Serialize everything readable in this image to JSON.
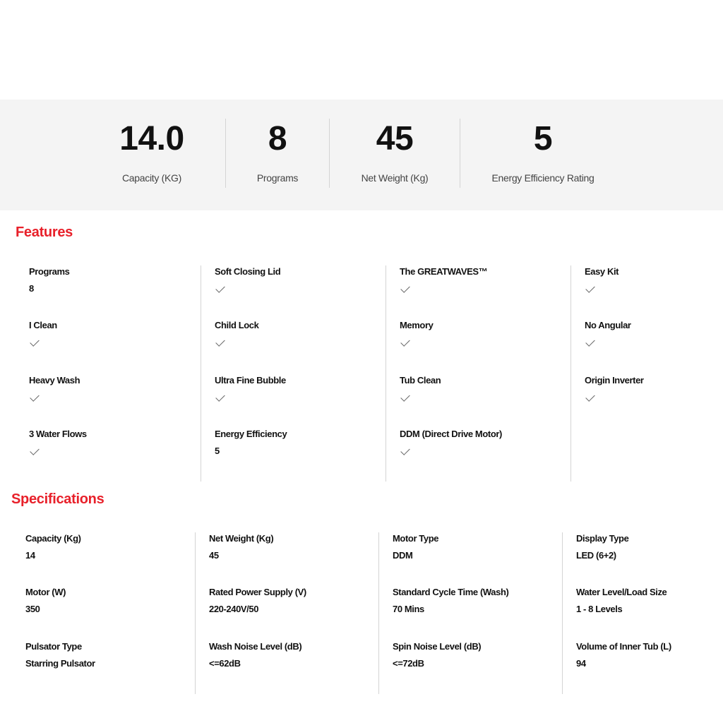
{
  "stats": [
    {
      "value": "14.0",
      "label": "Capacity (KG)"
    },
    {
      "value": "8",
      "label": "Programs"
    },
    {
      "value": "45",
      "label": "Net Weight (Kg)"
    },
    {
      "value": "5",
      "label": "Energy Efficiency Rating"
    }
  ],
  "features": {
    "title": "Features",
    "columns": [
      [
        {
          "label": "Programs",
          "value": "8"
        },
        {
          "label": "I Clean",
          "check": true
        },
        {
          "label": "Heavy Wash",
          "check": true
        },
        {
          "label": "3 Water Flows",
          "check": true
        }
      ],
      [
        {
          "label": "Soft Closing Lid",
          "check": true
        },
        {
          "label": "Child Lock",
          "check": true
        },
        {
          "label": "Ultra Fine Bubble",
          "check": true
        },
        {
          "label": "Energy Efficiency",
          "value": "5"
        }
      ],
      [
        {
          "label": "The GREATWAVES™",
          "check": true
        },
        {
          "label": "Memory",
          "check": true
        },
        {
          "label": "Tub Clean",
          "check": true
        },
        {
          "label": "DDM (Direct Drive Motor)",
          "check": true
        }
      ],
      [
        {
          "label": "Easy Kit",
          "check": true
        },
        {
          "label": "No Angular",
          "check": true
        },
        {
          "label": "Origin Inverter",
          "check": true
        }
      ]
    ]
  },
  "specifications": {
    "title": "Specifications",
    "columns": [
      [
        {
          "label": "Capacity (Kg)",
          "value": "14"
        },
        {
          "label": "Motor (W)",
          "value": "350"
        },
        {
          "label": "Pulsator Type",
          "value": "Starring Pulsator"
        }
      ],
      [
        {
          "label": "Net Weight (Kg)",
          "value": "45"
        },
        {
          "label": "Rated Power Supply (V)",
          "value": "220-240V/50"
        },
        {
          "label": "Wash Noise Level (dB)",
          "value": "<=62dB"
        }
      ],
      [
        {
          "label": "Motor Type",
          "value": "DDM"
        },
        {
          "label": "Standard Cycle Time (Wash)",
          "value": "70 Mins"
        },
        {
          "label": "Spin Noise Level (dB)",
          "value": "<=72dB"
        }
      ],
      [
        {
          "label": "Display Type",
          "value": "LED (6+2)"
        },
        {
          "label": "Water Level/Load Size",
          "value": "1 - 8 Levels"
        },
        {
          "label": "Volume of Inner Tub (L)",
          "value": "94"
        }
      ]
    ]
  },
  "colors": {
    "accent": "#e8202a",
    "band": "#f4f4f4"
  }
}
